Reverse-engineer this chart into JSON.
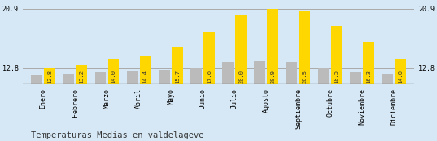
{
  "months": [
    "Enero",
    "Febrero",
    "Marzo",
    "Abril",
    "Mayo",
    "Junio",
    "Julio",
    "Agosto",
    "Septiembre",
    "Octubre",
    "Noviembre",
    "Diciembre"
  ],
  "values": [
    12.8,
    13.2,
    14.0,
    14.4,
    15.7,
    17.6,
    20.0,
    20.9,
    20.5,
    18.5,
    16.3,
    14.0
  ],
  "gray_values": [
    11.8,
    12.0,
    12.2,
    12.3,
    12.5,
    12.8,
    13.5,
    13.8,
    13.5,
    12.8,
    12.2,
    12.0
  ],
  "bar_color_yellow": "#FFD700",
  "bar_color_gray": "#BBBBBB",
  "background_color": "#D6E8F5",
  "title": "Temperaturas Medias en valdelageve",
  "title_fontsize": 7.5,
  "ymin": 10.5,
  "ymax": 21.8,
  "yticks": [
    12.8,
    20.9
  ],
  "value_label_fontsize": 5.0,
  "tick_label_fontsize": 6.0,
  "line_color": "#AAAAAA",
  "bar_width": 0.35,
  "bar_gap": 0.06
}
